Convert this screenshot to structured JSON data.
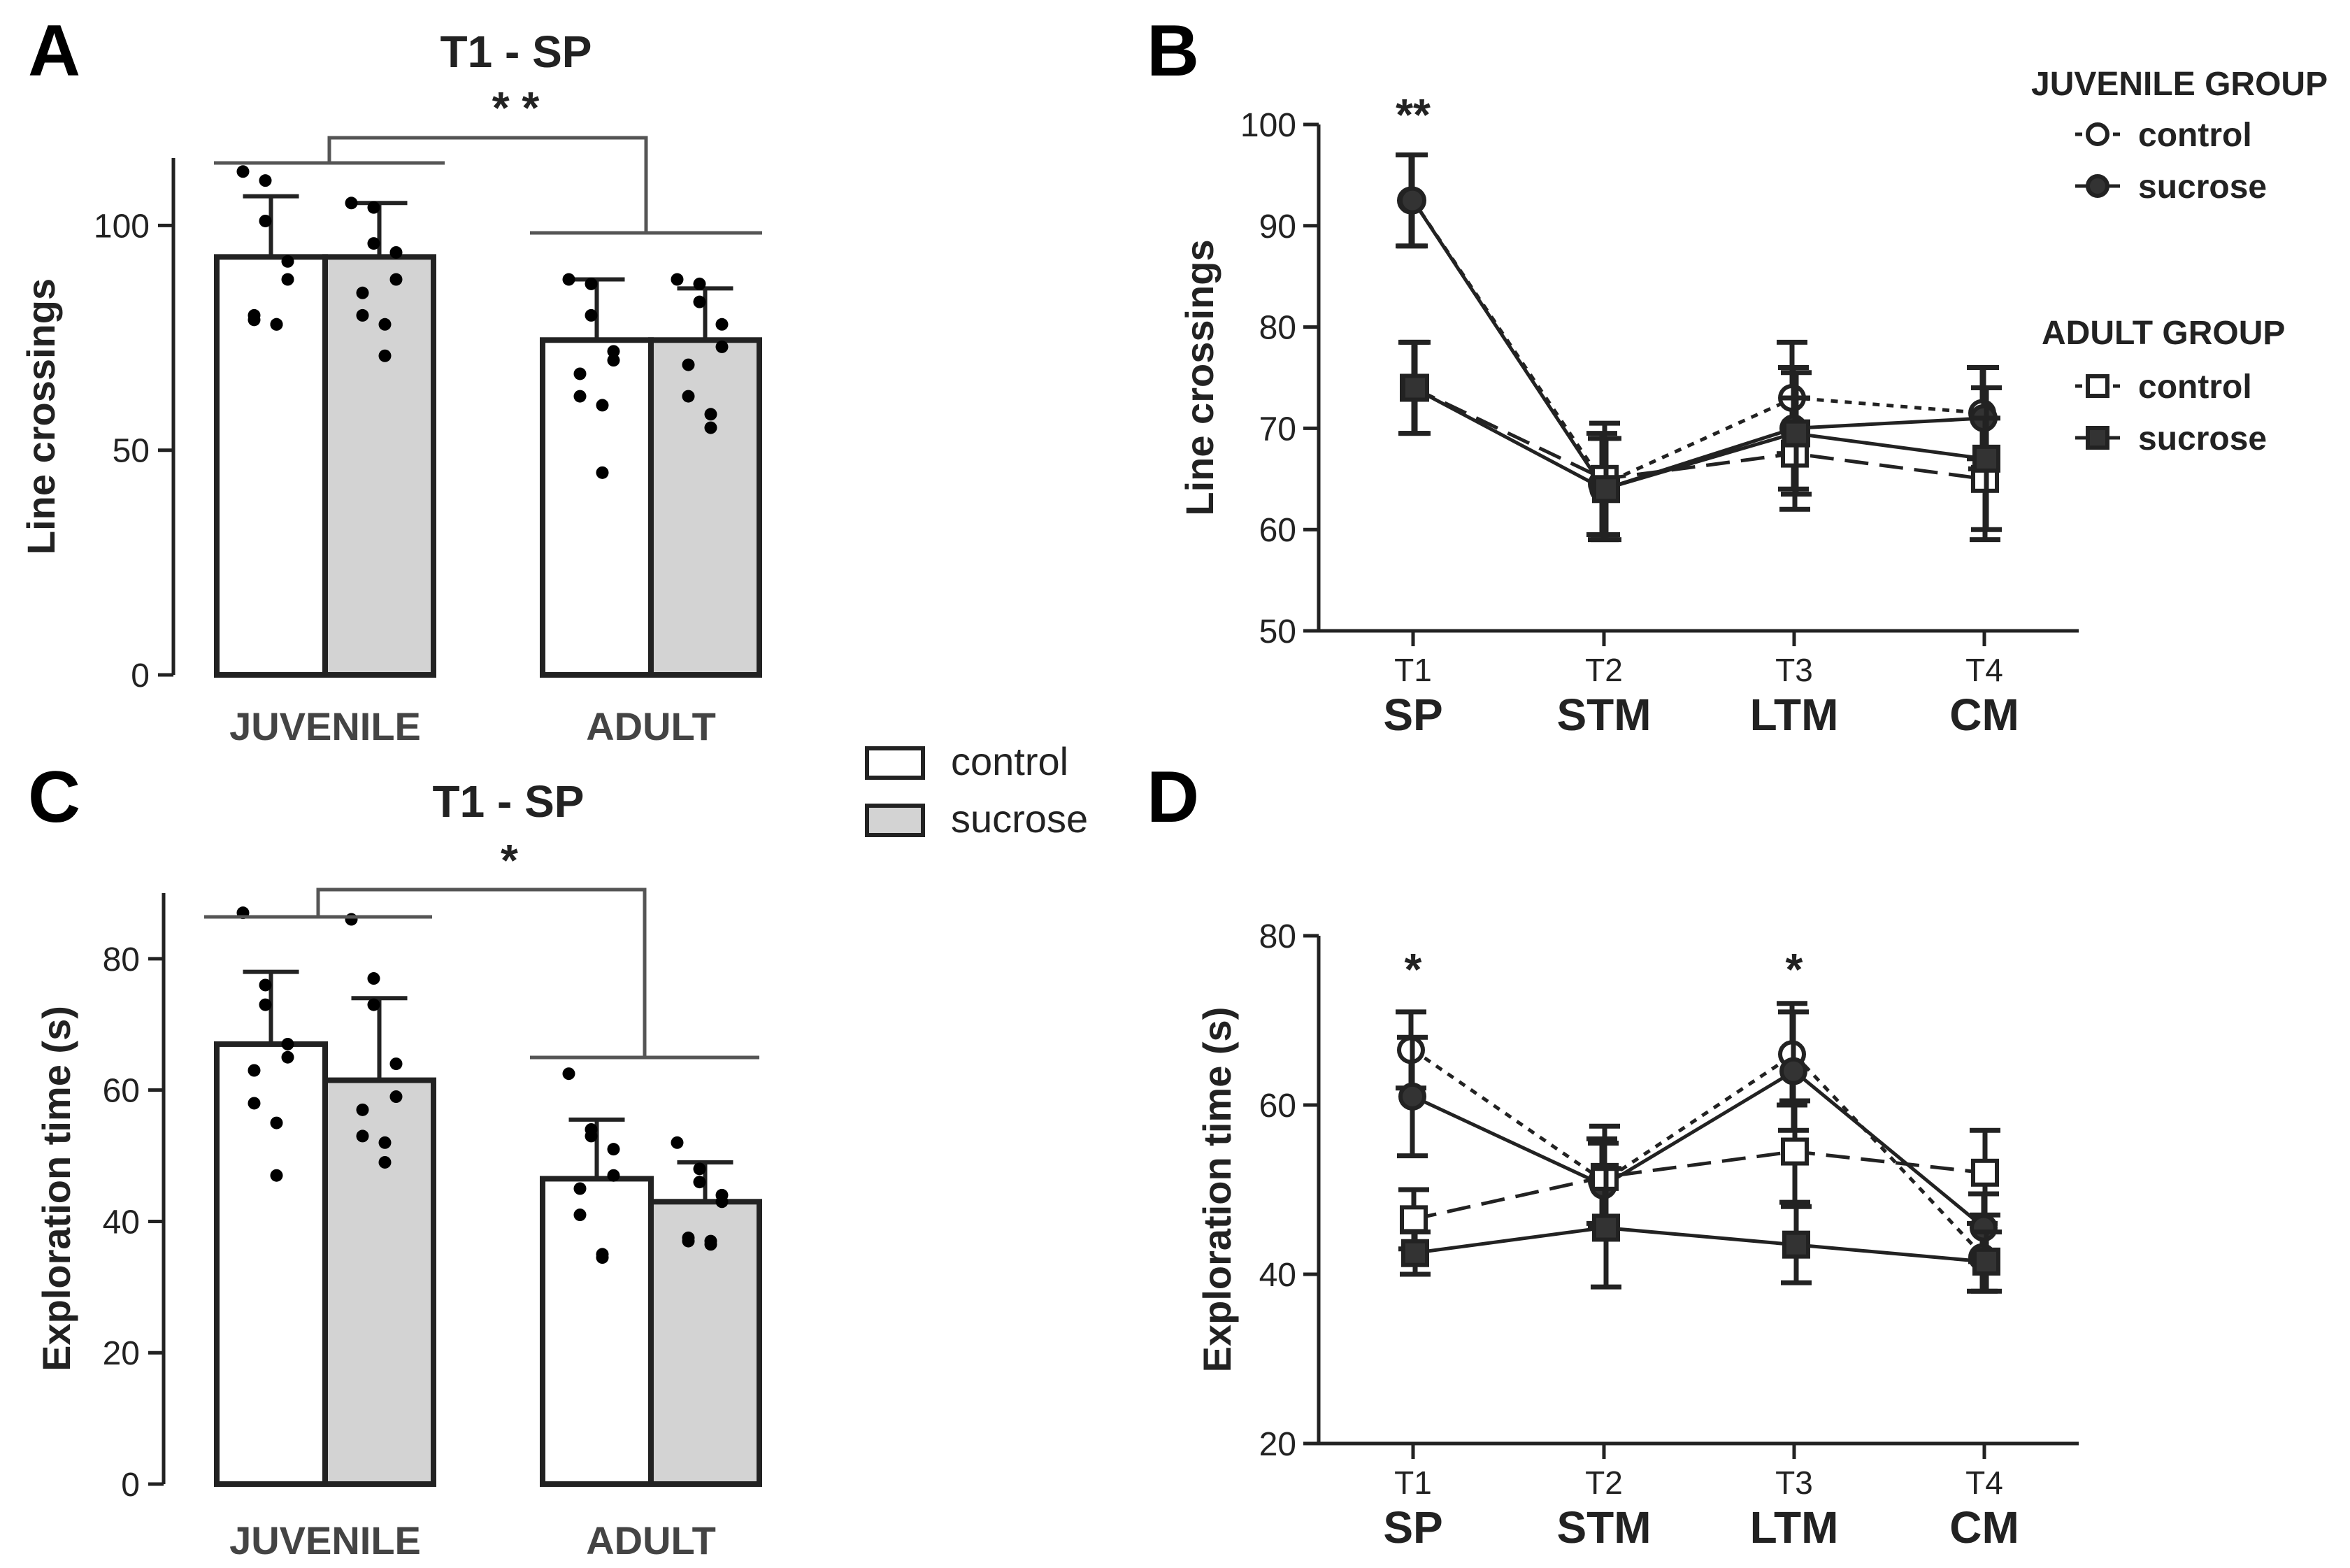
{
  "legend_bars": {
    "control": "control",
    "sucrose": "sucrose"
  },
  "chart_data": [
    {
      "panel": "A",
      "type": "bar",
      "title": "T1 - SP",
      "ylabel": "Line crossings",
      "ylim": [
        0,
        115
      ],
      "yticks": [
        0,
        50,
        100
      ],
      "categories": [
        "JUVENILE",
        "ADULT"
      ],
      "series": [
        {
          "name": "control",
          "values": [
            93,
            74.5
          ],
          "errors": [
            13.5,
            13.5
          ],
          "points": [
            [
              112,
              110,
              101,
              92,
              88,
              80,
              79,
              78,
              78
            ],
            [
              88,
              87,
              80,
              72,
              70,
              67,
              62,
              60,
              45
            ]
          ]
        },
        {
          "name": "sucrose",
          "values": [
            93,
            74.5
          ],
          "errors": [
            12,
            11.5
          ],
          "points": [
            [
              105,
              104,
              96,
              94,
              88,
              85,
              80,
              78,
              71
            ],
            [
              88,
              87,
              83,
              78,
              73,
              69,
              62,
              58,
              55
            ]
          ]
        }
      ],
      "significance": "* *"
    },
    {
      "panel": "C",
      "type": "bar",
      "title": "T1 - SP",
      "ylabel": "Exploration time (s)",
      "ylim": [
        0,
        90
      ],
      "yticks": [
        0,
        20,
        40,
        60,
        80
      ],
      "categories": [
        "JUVENILE",
        "ADULT"
      ],
      "series": [
        {
          "name": "control",
          "values": [
            67,
            46.5
          ],
          "errors": [
            11,
            9
          ],
          "points": [
            [
              87,
              76,
              73,
              67,
              65,
              63,
              58,
              55,
              47
            ],
            [
              62.5,
              54,
              53,
              51,
              47,
              45,
              41,
              35,
              34.5
            ]
          ]
        },
        {
          "name": "sucrose",
          "values": [
            61.5,
            43
          ],
          "errors": [
            12.5,
            6
          ],
          "points": [
            [
              86,
              77,
              73,
              64,
              59,
              57,
              53,
              52,
              49
            ],
            [
              52,
              48,
              46,
              44,
              43,
              37.5,
              37,
              37,
              36.5
            ]
          ]
        }
      ],
      "significance": "*"
    },
    {
      "panel": "B",
      "type": "line",
      "ylabel": "Line crossings",
      "ylim": [
        50,
        100
      ],
      "yticks": [
        50,
        60,
        70,
        80,
        90,
        100
      ],
      "categories": [
        "T1",
        "T2",
        "T3",
        "T4"
      ],
      "sublabels": [
        "SP",
        "STM",
        "LTM",
        "CM"
      ],
      "legend": {
        "juvenile_title": "JUVENILE GROUP",
        "juvenile_control": "control",
        "juvenile_sucrose": "sucrose",
        "adult_title": "ADULT GROUP",
        "adult_control": "control",
        "adult_sucrose": "sucrose"
      },
      "series": [
        {
          "name": "juvenile control",
          "values": [
            92.5,
            64.5,
            73,
            71.5
          ],
          "errors": [
            4.5,
            5,
            5.5,
            4.5
          ]
        },
        {
          "name": "juvenile sucrose",
          "values": [
            92.5,
            64,
            70,
            71
          ],
          "errors": [
            4.5,
            5,
            6,
            5
          ]
        },
        {
          "name": "adult control",
          "values": [
            74,
            65,
            67.5,
            65
          ],
          "errors": [
            4.5,
            5.5,
            5.5,
            6
          ]
        },
        {
          "name": "adult sucrose",
          "values": [
            74,
            64,
            69.5,
            67
          ],
          "errors": [
            4.5,
            5,
            6,
            7
          ]
        }
      ],
      "significance": [
        {
          "at": "T1",
          "text": "**"
        }
      ]
    },
    {
      "panel": "D",
      "type": "line",
      "ylabel": "Exploration time (s)",
      "ylim": [
        20,
        80
      ],
      "yticks": [
        20,
        40,
        60,
        80
      ],
      "categories": [
        "T1",
        "T2",
        "T3",
        "T4"
      ],
      "sublabels": [
        "SP",
        "STM",
        "LTM",
        "CM"
      ],
      "series": [
        {
          "name": "juvenile control",
          "values": [
            66.5,
            51,
            66,
            42
          ],
          "errors": [
            4.5,
            5,
            6,
            4
          ]
        },
        {
          "name": "juvenile sucrose",
          "values": [
            61,
            50.5,
            64,
            45.5
          ],
          "errors": [
            7,
            5,
            7,
            4
          ]
        },
        {
          "name": "adult control",
          "values": [
            46.5,
            51.5,
            54.5,
            52
          ],
          "errors": [
            3.5,
            6,
            6,
            5
          ]
        },
        {
          "name": "adult sucrose",
          "values": [
            42.5,
            45.5,
            43.5,
            41.5
          ],
          "errors": [
            2.5,
            7,
            4.5,
            3.5
          ]
        }
      ],
      "significance": [
        {
          "at": "T1",
          "text": "*"
        },
        {
          "at": "T3",
          "text": "*"
        }
      ]
    }
  ]
}
